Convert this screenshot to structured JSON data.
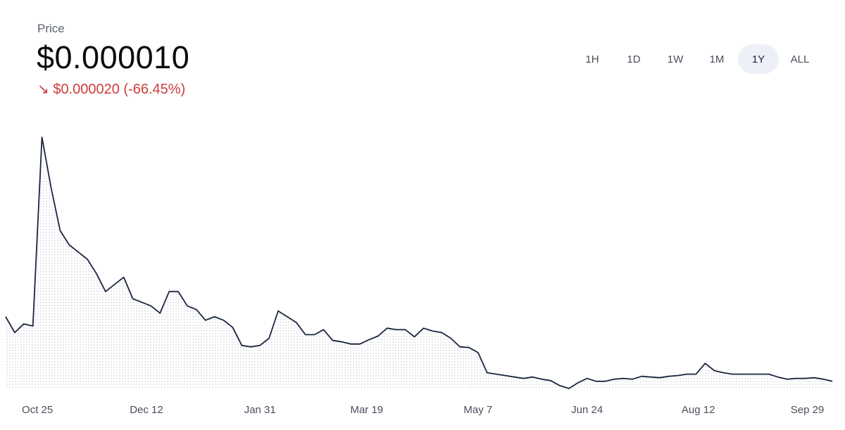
{
  "header": {
    "label": "Price",
    "price": "$0.000010",
    "change": "↘ $0.000020 (-66.45%)"
  },
  "ranges": [
    "1H",
    "1D",
    "1W",
    "1M",
    "1Y",
    "ALL"
  ],
  "selected": "1Y",
  "chart_data": {
    "type": "line",
    "color": "#1b2540",
    "x": [
      "Oct 11",
      "Oct 15",
      "Oct 19",
      "Oct 23",
      "Oct 27",
      "Oct 31",
      "Nov 4",
      "Nov 8",
      "Nov 12",
      "Nov 16",
      "Nov 20",
      "Nov 24",
      "Nov 28",
      "Dec 2",
      "Dec 6",
      "Dec 10",
      "Dec 14",
      "Dec 18",
      "Dec 22",
      "Dec 26",
      "Dec 30",
      "Jan 3",
      "Jan 7",
      "Jan 11",
      "Jan 15",
      "Jan 19",
      "Jan 23",
      "Jan 27",
      "Jan 31",
      "Feb 4",
      "Feb 8",
      "Feb 12",
      "Feb 16",
      "Feb 20",
      "Feb 24",
      "Feb 28",
      "Mar 4",
      "Mar 8",
      "Mar 12",
      "Mar 16",
      "Mar 20",
      "Mar 24",
      "Mar 28",
      "Apr 1",
      "Apr 5",
      "Apr 9",
      "Apr 13",
      "Apr 17",
      "Apr 21",
      "Apr 25",
      "Apr 29",
      "May 3",
      "May 7",
      "May 11",
      "May 15",
      "May 19",
      "May 23",
      "May 27",
      "May 31",
      "Jun 4",
      "Jun 8",
      "Jun 12",
      "Jun 16",
      "Jun 20",
      "Jun 24",
      "Jun 28",
      "Jul 2",
      "Jul 6",
      "Jul 10",
      "Jul 14",
      "Jul 18",
      "Jul 22",
      "Jul 26",
      "Jul 30",
      "Aug 3",
      "Aug 7",
      "Aug 11",
      "Aug 15",
      "Aug 19",
      "Aug 23",
      "Aug 27",
      "Aug 31",
      "Sep 4",
      "Sep 8",
      "Sep 12",
      "Sep 16",
      "Sep 20",
      "Sep 24",
      "Sep 28",
      "Oct 2",
      "Oct 6",
      "Oct 10"
    ],
    "values": [
      3.01e-05,
      2.518e-05,
      2.786e-05,
      2.719e-05,
      8.592e-05,
      7.029e-05,
      5.689e-05,
      5.243e-05,
      5.019e-05,
      4.796e-05,
      4.35e-05,
      3.791e-05,
      4.015e-05,
      4.238e-05,
      3.568e-05,
      3.456e-05,
      3.345e-05,
      3.121e-05,
      3.791e-05,
      3.791e-05,
      3.345e-05,
      3.233e-05,
      2.898e-05,
      3.01e-05,
      2.898e-05,
      2.675e-05,
      2.117e-05,
      2.072e-05,
      2.117e-05,
      2.34e-05,
      3.188e-05,
      3.01e-05,
      2.831e-05,
      2.451e-05,
      2.451e-05,
      2.608e-05,
      2.273e-05,
      2.228e-05,
      2.161e-05,
      2.161e-05,
      2.295e-05,
      2.407e-05,
      2.652e-05,
      2.608e-05,
      2.608e-05,
      2.384e-05,
      2.652e-05,
      2.563e-05,
      2.518e-05,
      2.34e-05,
      2.072e-05,
      2.05e-05,
      1.893e-05,
      1.268e-05,
      1.223e-05,
      1.179e-05,
      1.134e-05,
      1.089e-05,
      1.134e-05,
      1.067e-05,
      1.022e-05,
      8.66e-06,
      7.77e-06,
      9.55e-06,
      1.089e-05,
      1e-05,
      1e-05,
      1.067e-05,
      1.089e-05,
      1.067e-05,
      1.156e-05,
      1.134e-05,
      1.112e-05,
      1.156e-05,
      1.179e-05,
      1.223e-05,
      1.223e-05,
      1.558e-05,
      1.335e-05,
      1.268e-05,
      1.223e-05,
      1.223e-05,
      1.223e-05,
      1.223e-05,
      1.223e-05,
      1.134e-05,
      1.067e-05,
      1.089e-05,
      1.089e-05,
      1.112e-05,
      1.067e-05,
      1e-05
    ],
    "xticks": [
      "Oct 25",
      "Dec 12",
      "Jan 31",
      "Mar 19",
      "May 7",
      "Jun 24",
      "Aug 12",
      "Sep 29"
    ]
  }
}
